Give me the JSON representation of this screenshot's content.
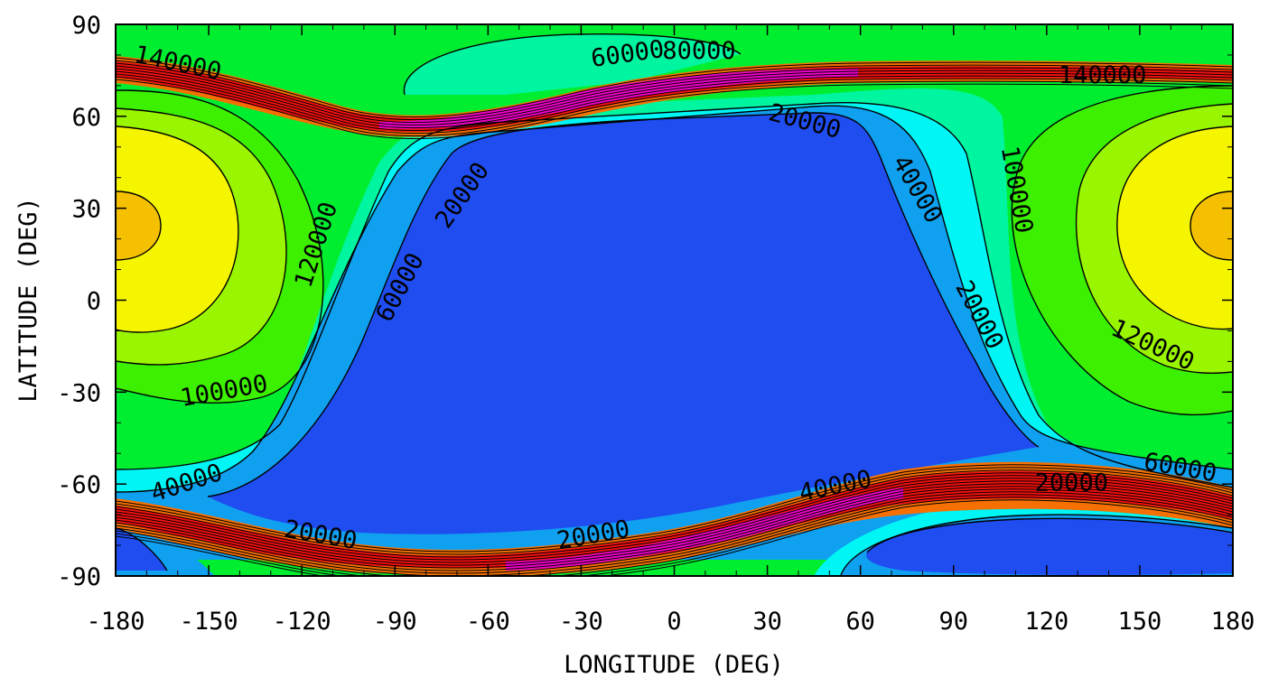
{
  "chart_data": {
    "type": "contour",
    "title_fragment": "",
    "xlabel": "LONGITUDE (DEG)",
    "ylabel": "LATITUDE (DEG)",
    "xlim": [
      -180,
      180
    ],
    "ylim": [
      -90,
      90
    ],
    "xticks": [
      -180,
      -150,
      -120,
      -90,
      -60,
      -30,
      0,
      30,
      60,
      90,
      120,
      150,
      180
    ],
    "yticks": [
      90,
      60,
      30,
      0,
      -30,
      -60,
      -90
    ],
    "grid": false,
    "contour_levels": [
      20000,
      40000,
      60000,
      80000,
      100000,
      120000,
      140000
    ],
    "colors": {
      "level_0": "#1f4df0",
      "level_20000": "#10a0f0",
      "level_40000": "#00f5f5",
      "level_60000": "#00f5a0",
      "level_80000": "#00ee30",
      "level_100000": "#3cf000",
      "level_120000": "#9af500",
      "level_140000": "#f5f500",
      "level_160000": "#f5c000",
      "level_high_1": "#f57000",
      "level_high_2": "#f51010",
      "level_high_3": "#f000c8",
      "contour_line": "#000000"
    },
    "contour_labels": [
      {
        "text": "140000",
        "lon": -160,
        "lat": 77,
        "rot": 12
      },
      {
        "text": "60000",
        "lon": -15,
        "lat": 80,
        "rot": -8
      },
      {
        "text": "80000",
        "lon": 8,
        "lat": 81,
        "rot": 0
      },
      {
        "text": "140000",
        "lon": 138,
        "lat": 73,
        "rot": 0
      },
      {
        "text": "20000",
        "lon": 42,
        "lat": 58,
        "rot": 15
      },
      {
        "text": "20000",
        "lon": -68,
        "lat": 34,
        "rot": -55
      },
      {
        "text": "40000",
        "lon": 78,
        "lat": 36,
        "rot": 60
      },
      {
        "text": "100000",
        "lon": 110,
        "lat": 36,
        "rot": 80
      },
      {
        "text": "120000",
        "lon": -115,
        "lat": 18,
        "rot": -72
      },
      {
        "text": "60000",
        "lon": -88,
        "lat": 4,
        "rot": -62
      },
      {
        "text": "20000",
        "lon": 98,
        "lat": -5,
        "rot": 62
      },
      {
        "text": "120000",
        "lon": 154,
        "lat": -15,
        "rot": 25
      },
      {
        "text": "100000",
        "lon": -145,
        "lat": -30,
        "rot": -10
      },
      {
        "text": "60000",
        "lon": 163,
        "lat": -55,
        "rot": 10
      },
      {
        "text": "40000",
        "lon": -157,
        "lat": -60,
        "rot": -18
      },
      {
        "text": "40000",
        "lon": 52,
        "lat": -61,
        "rot": -12
      },
      {
        "text": "20000",
        "lon": 128,
        "lat": -60,
        "rot": 0
      },
      {
        "text": "20000",
        "lon": -114,
        "lat": -77,
        "rot": 10
      },
      {
        "text": "20000",
        "lon": -26,
        "lat": -77,
        "rot": -10
      }
    ]
  }
}
